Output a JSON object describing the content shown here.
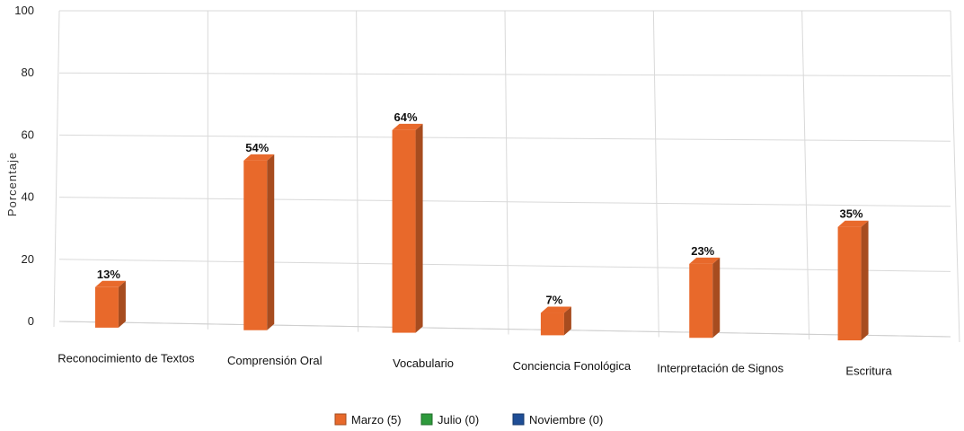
{
  "chart_data": {
    "type": "bar",
    "ylabel": "Porcentaje",
    "ylim": [
      0,
      100
    ],
    "yticks": [
      0,
      20,
      40,
      60,
      80,
      100
    ],
    "grid": true,
    "legend_position": "bottom",
    "categories": [
      "Reconocimiento de Textos",
      "Comprensión Oral",
      "Vocabulario",
      "Conciencia Fonológica",
      "Interpretación de Signos",
      "Escritura"
    ],
    "series": [
      {
        "name": "Marzo (5)",
        "color": "#e8692b",
        "values": [
          13,
          54,
          64,
          7,
          23,
          35
        ],
        "labels": [
          "13%",
          "54%",
          "64%",
          "7%",
          "23%",
          "35%"
        ]
      },
      {
        "name": "Julio (0)",
        "color": "#2e9a3c",
        "values": [
          0,
          0,
          0,
          0,
          0,
          0
        ]
      },
      {
        "name": "Noviembre (0)",
        "color": "#1f4e96",
        "values": [
          0,
          0,
          0,
          0,
          0,
          0
        ]
      }
    ]
  }
}
